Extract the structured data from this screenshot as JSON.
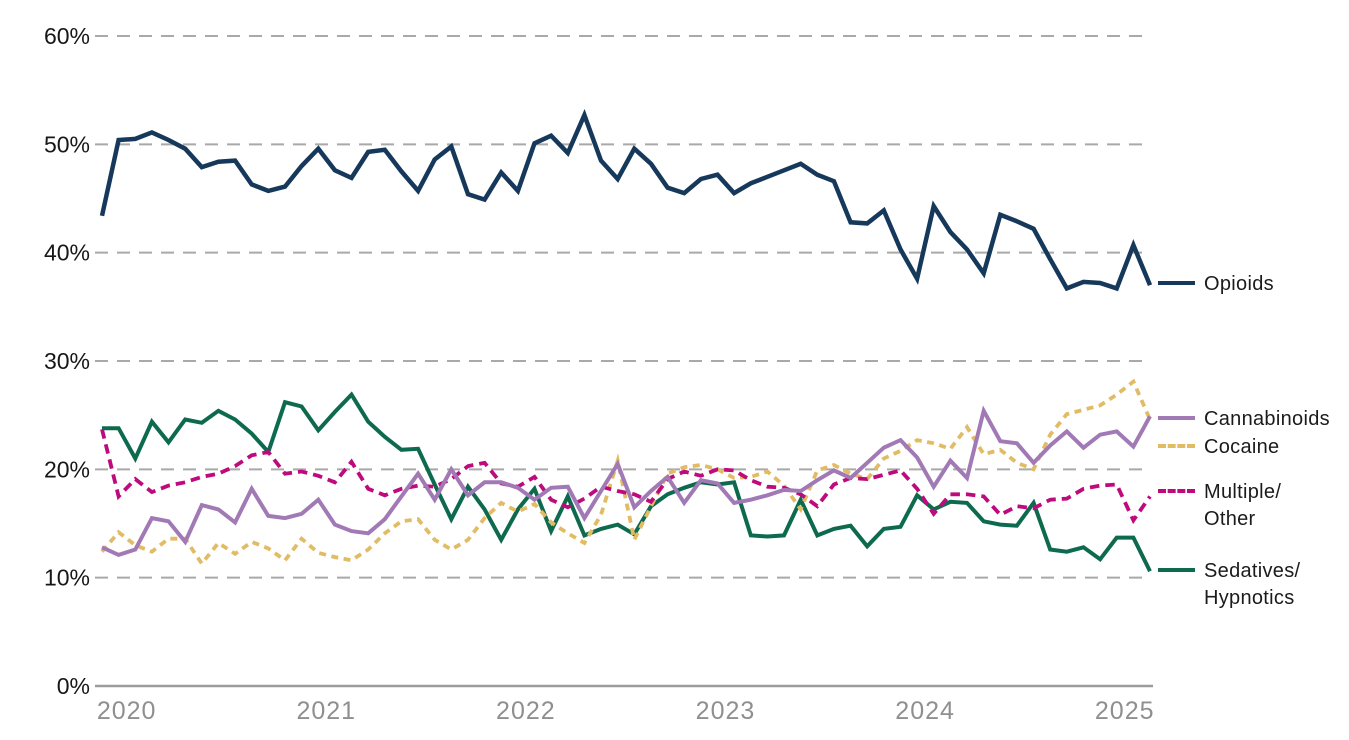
{
  "chart_data": {
    "type": "line",
    "title": "",
    "x_axis": {
      "tick_labels": [
        "2020",
        "2021",
        "2022",
        "2023",
        "2024",
        "2025"
      ],
      "start": "2019-12",
      "end": "2025-03",
      "frequency": "monthly",
      "points_per_series": 64
    },
    "y_axis": {
      "tick_labels": [
        "0%",
        "10%",
        "20%",
        "30%",
        "40%",
        "50%",
        "60%"
      ],
      "min": 0,
      "max": 60,
      "unit": "%"
    },
    "grid": "horizontal-dashed",
    "legend_position": "right",
    "series": [
      {
        "id": "opioids",
        "name": "Opioids",
        "color": "#16395B",
        "style": "solid",
        "values": [
          43.4,
          50.4,
          50.5,
          51.1,
          50.4,
          49.6,
          47.9,
          48.4,
          48.5,
          46.3,
          45.7,
          46.1,
          48.0,
          49.6,
          47.6,
          46.9,
          49.3,
          49.5,
          47.5,
          45.7,
          48.6,
          49.8,
          45.4,
          44.9,
          47.4,
          45.7,
          50.1,
          50.8,
          49.2,
          52.7,
          48.5,
          46.8,
          49.6,
          48.2,
          46.0,
          45.5,
          46.8,
          47.2,
          45.5,
          46.4,
          47.0,
          47.6,
          48.2,
          47.2,
          46.6,
          42.8,
          42.7,
          43.9,
          40.3,
          37.6,
          44.3,
          41.9,
          40.3,
          38.1,
          43.5,
          42.9,
          42.2,
          39.4,
          36.7,
          37.3,
          37.2,
          36.7,
          40.7,
          37.0
        ]
      },
      {
        "id": "cannabinoids",
        "name": "Cannabinoids",
        "color": "#A179B5",
        "style": "solid",
        "values": [
          12.8,
          12.1,
          12.6,
          15.5,
          15.2,
          13.3,
          16.7,
          16.3,
          15.1,
          18.2,
          15.7,
          15.5,
          15.9,
          17.2,
          14.9,
          14.3,
          14.1,
          15.4,
          17.5,
          19.6,
          17.2,
          20.0,
          17.6,
          18.8,
          18.8,
          18.3,
          17.2,
          18.3,
          18.4,
          15.5,
          18.0,
          20.5,
          16.5,
          18.0,
          19.3,
          16.9,
          19.0,
          18.7,
          16.9,
          17.2,
          17.6,
          18.1,
          18.0,
          19.0,
          19.9,
          19.2,
          20.6,
          22.0,
          22.7,
          21.1,
          18.4,
          20.8,
          19.2,
          25.4,
          22.6,
          22.4,
          20.6,
          22.2,
          23.5,
          22.0,
          23.2,
          23.5,
          22.1,
          24.9
        ]
      },
      {
        "id": "cocaine",
        "name": "Cocaine",
        "color": "#E2BC64",
        "style": "dashed",
        "values": [
          12.4,
          14.2,
          13.0,
          12.4,
          13.6,
          13.6,
          11.3,
          13.2,
          12.2,
          13.3,
          12.7,
          11.6,
          13.6,
          12.3,
          11.9,
          11.6,
          12.6,
          14.1,
          15.2,
          15.4,
          13.5,
          12.6,
          13.5,
          15.5,
          16.9,
          16.1,
          16.8,
          15.1,
          14.1,
          13.2,
          15.8,
          20.8,
          13.5,
          16.6,
          19.6,
          20.2,
          20.4,
          20.0,
          19.2,
          19.3,
          19.8,
          18.5,
          16.3,
          19.9,
          20.4,
          19.6,
          19.1,
          21.0,
          21.7,
          22.7,
          22.4,
          21.9,
          23.9,
          21.4,
          21.8,
          20.6,
          20.0,
          23.2,
          25.1,
          25.5,
          25.9,
          26.9,
          28.1,
          24.6
        ]
      },
      {
        "id": "multiple-other",
        "name": "Multiple/Other",
        "color": "#BE0A7D",
        "style": "dashed",
        "values": [
          23.7,
          17.5,
          19.1,
          17.9,
          18.5,
          18.8,
          19.3,
          19.6,
          20.3,
          21.3,
          21.6,
          19.6,
          19.8,
          19.4,
          18.8,
          20.7,
          18.2,
          17.6,
          18.2,
          18.5,
          18.4,
          19.1,
          20.3,
          20.6,
          18.7,
          18.4,
          19.3,
          17.2,
          16.5,
          17.3,
          18.4,
          18.0,
          17.7,
          17.0,
          19.1,
          19.8,
          19.4,
          20.0,
          19.9,
          19.0,
          18.4,
          18.3,
          17.7,
          16.6,
          18.6,
          19.2,
          19.1,
          19.5,
          19.9,
          18.2,
          15.9,
          17.7,
          17.7,
          17.5,
          15.8,
          16.6,
          16.4,
          17.2,
          17.3,
          18.2,
          18.5,
          18.6,
          15.3,
          17.5
        ]
      },
      {
        "id": "sedatives-hypnotics",
        "name": "Sedatives/Hypnotics",
        "color": "#0E6A4E",
        "style": "solid",
        "values": [
          23.8,
          23.8,
          21.0,
          24.4,
          22.5,
          24.6,
          24.3,
          25.4,
          24.6,
          23.3,
          21.6,
          26.2,
          25.8,
          23.6,
          25.3,
          26.9,
          24.4,
          23.0,
          21.8,
          21.9,
          18.6,
          15.4,
          18.4,
          16.3,
          13.5,
          16.3,
          18.2,
          14.3,
          17.5,
          13.9,
          14.5,
          14.9,
          14.0,
          16.6,
          17.7,
          18.3,
          18.8,
          18.6,
          18.8,
          13.9,
          13.8,
          13.9,
          17.2,
          13.9,
          14.5,
          14.8,
          12.9,
          14.5,
          14.7,
          17.6,
          16.3,
          17.0,
          16.9,
          15.2,
          14.9,
          14.8,
          16.9,
          12.6,
          12.4,
          12.8,
          11.7,
          13.7,
          13.7,
          10.6
        ]
      }
    ],
    "colors": {
      "gridline": "#A9A9A9",
      "axis_line": "#9B9B9B",
      "y_tick_label": "#171717",
      "x_tick_label": "#8F8F8F",
      "legend_text": "#1B1B1B"
    }
  },
  "legend": {
    "items": [
      {
        "id": "opioids",
        "lines": [
          "Opioids"
        ]
      },
      {
        "id": "cannabinoids",
        "lines": [
          "Cannabinoids"
        ]
      },
      {
        "id": "cocaine",
        "lines": [
          "Cocaine"
        ]
      },
      {
        "id": "multiple-other",
        "lines": [
          "Multiple/",
          "Other"
        ]
      },
      {
        "id": "sedatives-hypnotics",
        "lines": [
          "Sedatives/",
          "Hypnotics"
        ]
      }
    ]
  }
}
